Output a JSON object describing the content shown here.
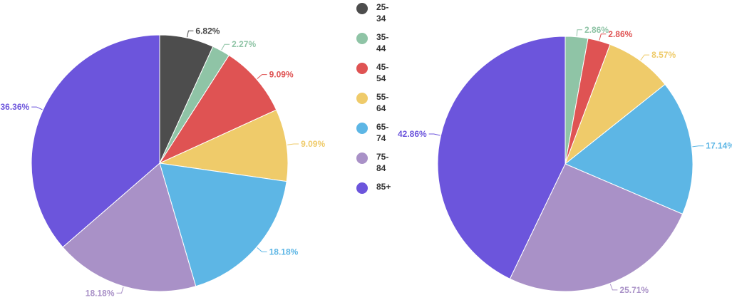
{
  "legend": {
    "items": [
      {
        "label": "25-34",
        "color": "#4d4d4d"
      },
      {
        "label": "35-44",
        "color": "#8fc4a6"
      },
      {
        "label": "45-54",
        "color": "#df5353"
      },
      {
        "label": "55-64",
        "color": "#efcb6a"
      },
      {
        "label": "65-74",
        "color": "#5db6e5"
      },
      {
        "label": "75-84",
        "color": "#a991c7"
      },
      {
        "label": "85+",
        "color": "#6c55dc"
      }
    ]
  },
  "chart_data": [
    {
      "type": "pie",
      "categories": [
        "25-34",
        "35-44",
        "45-54",
        "55-64",
        "65-74",
        "75-84",
        "85+"
      ],
      "values": [
        6.82,
        2.27,
        9.09,
        9.09,
        18.18,
        18.18,
        36.36
      ],
      "labels": [
        "6.82%",
        "2.27%",
        "9.09%",
        "9.09%",
        "18.18%",
        "18.18%",
        "36.36%"
      ]
    },
    {
      "type": "pie",
      "categories": [
        "25-34",
        "35-44",
        "45-54",
        "55-64",
        "65-74",
        "75-84",
        "85+"
      ],
      "values": [
        0,
        2.86,
        2.86,
        8.57,
        17.14,
        25.71,
        42.86
      ],
      "labels": [
        "",
        "2.86%",
        "2.86%",
        "8.57%",
        "17.14%",
        "25.71%",
        "42.86%"
      ]
    }
  ]
}
